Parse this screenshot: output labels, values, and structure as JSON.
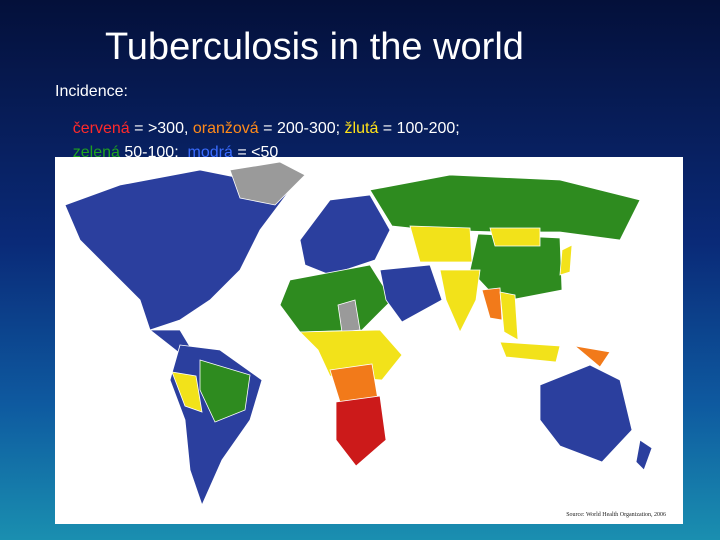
{
  "title": "Tuberculosis in the world",
  "legend": {
    "heading": "Incidence:",
    "line1": [
      {
        "name": "červená",
        "text": " = >300, "
      },
      {
        "name": "oranžová",
        "text": " = 200-300; "
      },
      {
        "name": "žlutá",
        "text": " = 100-200;"
      }
    ],
    "line2": [
      {
        "name": "zelená",
        "text": " 50-100;  "
      },
      {
        "name": "modrá",
        "text": " = <50"
      }
    ]
  },
  "map": {
    "source": "Source: World Health Organization, 2006"
  }
}
